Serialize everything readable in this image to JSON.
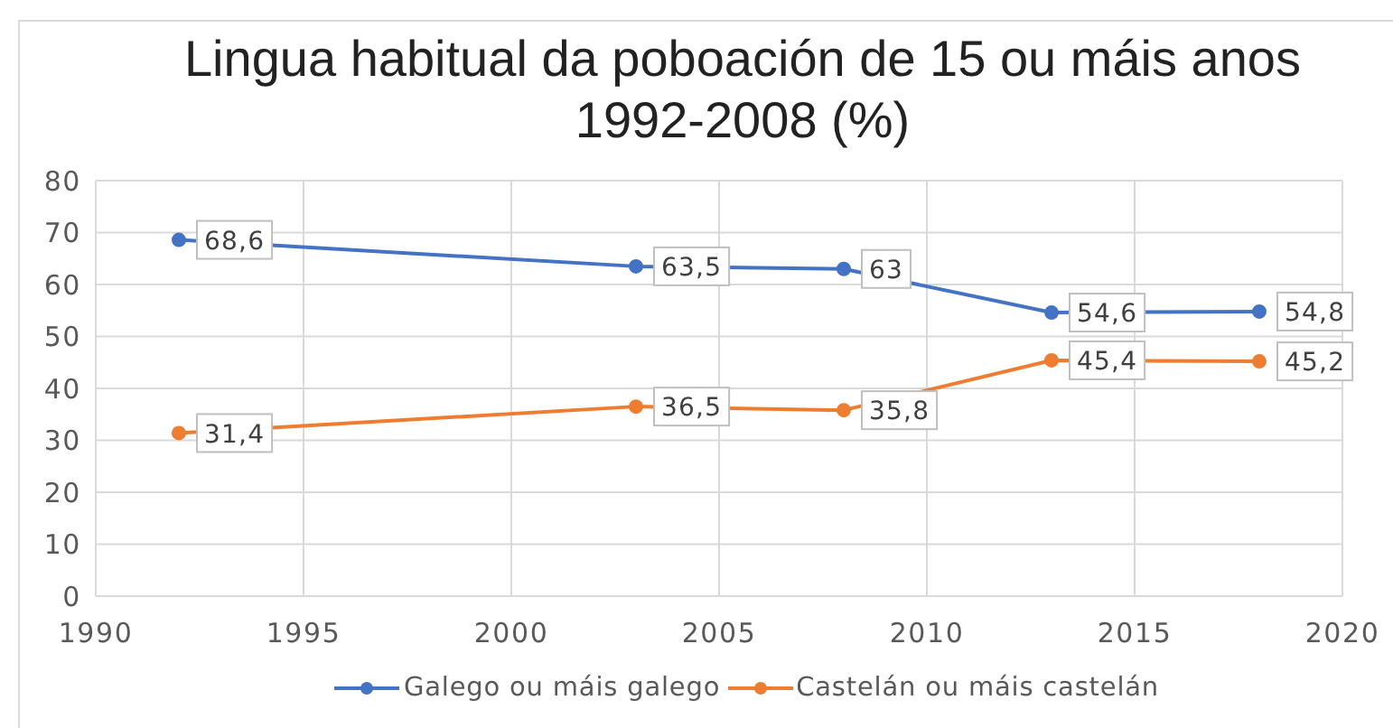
{
  "chart_data": {
    "type": "line",
    "title": "Lingua habitual da poboación de 15 ou máis anos 1992-2008 (%)",
    "x": [
      1992,
      2003,
      2008,
      2013,
      2018
    ],
    "series": [
      {
        "name": "Galego ou máis galego",
        "color": "#4472c4",
        "values": [
          68.6,
          63.5,
          63,
          54.6,
          54.8
        ],
        "value_labels": [
          "68,6",
          "63,5",
          "63",
          "54,6",
          "54,8"
        ]
      },
      {
        "name": "Castelán ou máis castelán",
        "color": "#ed7d31",
        "values": [
          31.4,
          36.5,
          35.8,
          45.4,
          45.2
        ],
        "value_labels": [
          "31,4",
          "36,5",
          "35,8",
          "45,4",
          "45,2"
        ]
      }
    ],
    "xlim": [
      1990,
      2020
    ],
    "xticks": [
      1990,
      1995,
      2000,
      2005,
      2010,
      2015,
      2020
    ],
    "ylim": [
      0,
      80
    ],
    "yticks": [
      0,
      10,
      20,
      30,
      40,
      50,
      60,
      70,
      80
    ],
    "grid": true,
    "legend": "bottom",
    "marker": "circle",
    "line_style": "solid"
  }
}
